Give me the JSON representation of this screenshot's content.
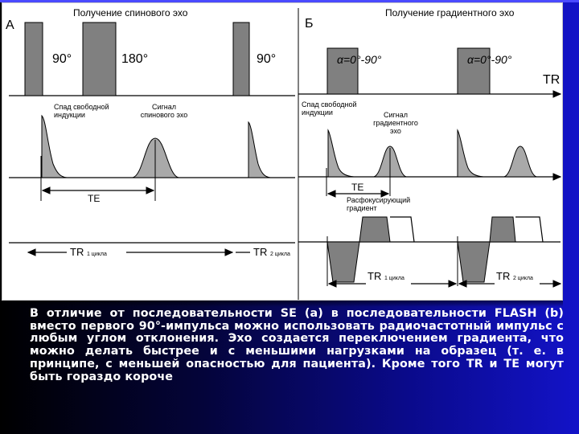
{
  "panel_a": {
    "letter": "А",
    "title": "Получение спинового эхо",
    "pulse1": "90°",
    "pulse2": "180°",
    "pulse3": "90°",
    "fid_label": "Спад свободной индукции",
    "echo_label": "Сигнал спинового эхо",
    "te": "TE",
    "tr": "TR",
    "tr_sub1": "1 цикла",
    "tr_sub2": "2 цикла"
  },
  "panel_b": {
    "letter": "Б",
    "title": "Получение градиентного эхо",
    "pulse1": "α=0°-90°",
    "pulse2": "α=0°-90°",
    "tr_axis": "TR",
    "fid_label": "Спад свободной индукции",
    "echo_label": "Сигнал градиентного эхо",
    "te": "TE",
    "gradient_label": "Расфокусирующий градиент",
    "tr_label1": "TR",
    "tr_sub1": "1 цикла",
    "tr_label2": "TR",
    "tr_sub2": "2 цикла"
  },
  "caption": "В отличие от последовательности SE (а) в последовательности FLASH (b) вместо первого 90°-импульса можно использовать радиочастотный импульс с любым углом отклонения. Эхо создается переключением градиента, что можно делать быстрее и с меньшими нагрузками на образец (т. е. в принципе, с меньшей опасностью для пациента). Кроме того TR и TE могут быть гораздо короче",
  "colors": {
    "pulse_fill": "#808080",
    "curve_fill": "#a9a9a9",
    "background_dark": "#000000",
    "background_blue": "#1313c8",
    "caption_text": "#ffffff"
  }
}
